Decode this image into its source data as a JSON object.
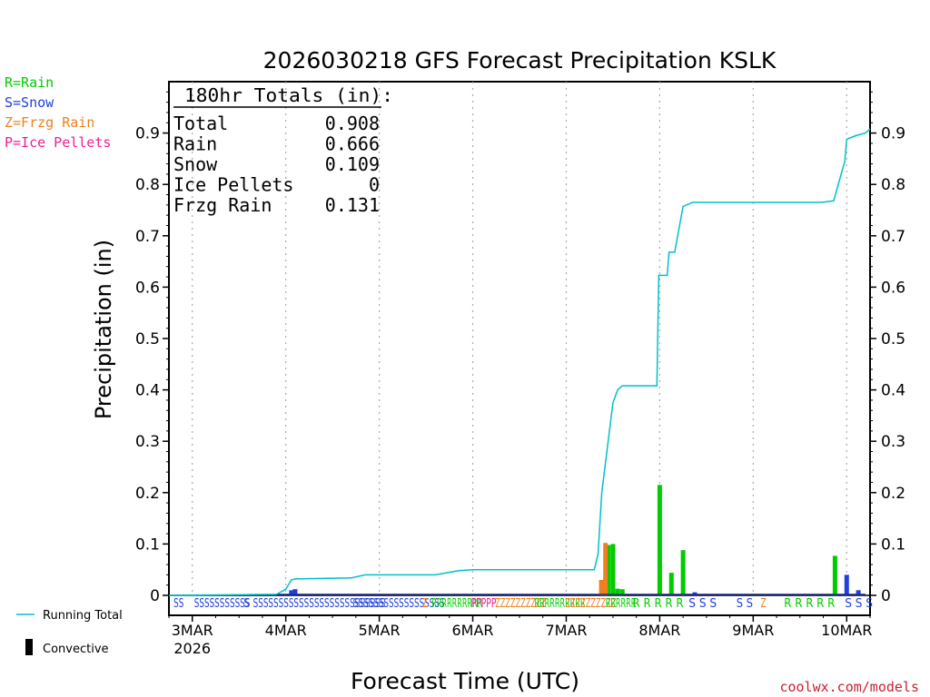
{
  "chart_data": {
    "type": "bar",
    "title": "2026030218 GFS Forecast Precipitation KSLK",
    "xlabel": "Forecast Time (UTC)",
    "ylabel": "Precipitation (in)",
    "watermark": "coolwx.com/models",
    "ylim": [
      0,
      1.0
    ],
    "xlim_days": [
      -0.25,
      7.25
    ],
    "y_ticks": [
      0,
      0.1,
      0.2,
      0.3,
      0.4,
      0.5,
      0.6,
      0.7,
      0.8,
      0.9
    ],
    "x_ticks": [
      {
        "day": 0,
        "label": "3MAR",
        "sub": "2026"
      },
      {
        "day": 1,
        "label": "4MAR",
        "sub": ""
      },
      {
        "day": 2,
        "label": "5MAR",
        "sub": ""
      },
      {
        "day": 3,
        "label": "6MAR",
        "sub": ""
      },
      {
        "day": 4,
        "label": "7MAR",
        "sub": ""
      },
      {
        "day": 5,
        "label": "8MAR",
        "sub": ""
      },
      {
        "day": 6,
        "label": "9MAR",
        "sub": ""
      },
      {
        "day": 7,
        "label": "10MAR",
        "sub": ""
      }
    ],
    "legend_types": [
      {
        "label": "R=Rain",
        "color": "#00cc00"
      },
      {
        "label": "S=Snow",
        "color": "#2040e0"
      },
      {
        "label": "Z=Frzg Rain",
        "color": "#ee8020"
      },
      {
        "label": "P=Ice Pellets",
        "color": "#ee2090"
      }
    ],
    "legend_lines": [
      {
        "label": "Running Total",
        "color": "#00c0c8"
      },
      {
        "label": "Convective",
        "color": "#000000"
      }
    ],
    "totals": {
      "header": "180hr Totals (in):",
      "rows": [
        {
          "name": "Total",
          "value": "0.908"
        },
        {
          "name": "Rain",
          "value": "0.666"
        },
        {
          "name": "Snow",
          "value": "0.109"
        },
        {
          "name": "Ice Pellets",
          "value": "0"
        },
        {
          "name": "Frzg Rain",
          "value": "0.131"
        }
      ]
    },
    "series": [
      {
        "name": "Running Total",
        "color": "#00c0c8",
        "x": [
          -0.25,
          0.9,
          1.0,
          1.06,
          1.1,
          1.7,
          1.85,
          2.6,
          2.85,
          3.0,
          4.3,
          4.34,
          4.38,
          4.5,
          4.55,
          4.6,
          4.97,
          4.99,
          5.08,
          5.1,
          5.16,
          5.25,
          5.35,
          6.73,
          6.86,
          6.98,
          7.0,
          7.1,
          7.2,
          7.25
        ],
        "y": [
          0,
          0.002,
          0.012,
          0.03,
          0.032,
          0.034,
          0.04,
          0.04,
          0.048,
          0.05,
          0.05,
          0.08,
          0.2,
          0.375,
          0.4,
          0.408,
          0.408,
          0.623,
          0.623,
          0.668,
          0.668,
          0.757,
          0.765,
          0.765,
          0.768,
          0.845,
          0.888,
          0.895,
          0.9,
          0.908
        ]
      },
      {
        "name": "Rain",
        "color": "#00cc00",
        "x": [
          4.45,
          4.5,
          4.55,
          4.6,
          5.0,
          5.125,
          5.25,
          6.875
        ],
        "y": [
          0.098,
          0.1,
          0.013,
          0.012,
          0.215,
          0.044,
          0.088,
          0.077
        ]
      },
      {
        "name": "Frzg Rain",
        "color": "#ee8020",
        "x": [
          4.375,
          4.42
        ],
        "y": [
          0.03,
          0.102
        ]
      },
      {
        "name": "Snow",
        "color": "#2040e0",
        "x": [
          1.06,
          1.1,
          5.375,
          7.0,
          7.125
        ],
        "y": [
          0.01,
          0.012,
          0.006,
          0.04,
          0.01
        ]
      }
    ],
    "ptype_strip": [
      {
        "text": "SS",
        "x": -0.2,
        "color": "#2040e0"
      },
      {
        "text": "SSSSSSSSSSS",
        "x": 0.02,
        "color": "#2040e0"
      },
      {
        "text": "S",
        "x": 0.55,
        "color": "#2040e0"
      },
      {
        "text": "SSSSSSSSSSSSSSSSSSSSSSSSSS",
        "x": 0.65,
        "color": "#2040e0"
      },
      {
        "text": "SSSSSSSSSSSSSSSSSS",
        "x": 1.72,
        "color": "#2040e0"
      },
      {
        "text": "Z",
        "x": 2.46,
        "color": "#ee8020"
      },
      {
        "text": "RRRRRRRRRR",
        "x": 2.56,
        "color": "#00cc00"
      },
      {
        "text": "PPPPP",
        "x": 2.98,
        "color": "#ee2090"
      },
      {
        "text": "ZZZZZZZZZZ",
        "x": 3.24,
        "color": "#ee8020"
      },
      {
        "text": "RRRRRRRRRR",
        "x": 3.66,
        "color": "#00cc00"
      },
      {
        "text": "ZZZZZZZZZZ",
        "x": 3.99,
        "color": "#ee8020"
      },
      {
        "text": "RRRRRR",
        "x": 4.42,
        "color": "#00cc00"
      },
      {
        "text": "R R R R R",
        "x": 4.71,
        "color": "#00cc00"
      },
      {
        "text": "S S S",
        "x": 5.31,
        "color": "#2040e0"
      },
      {
        "text": "S S",
        "x": 5.82,
        "color": "#2040e0"
      },
      {
        "text": "Z",
        "x": 6.08,
        "color": "#ee8020"
      },
      {
        "text": "R R R R R",
        "x": 6.33,
        "color": "#00cc00"
      },
      {
        "text": "S S S",
        "x": 6.98,
        "color": "#2040e0"
      }
    ]
  }
}
